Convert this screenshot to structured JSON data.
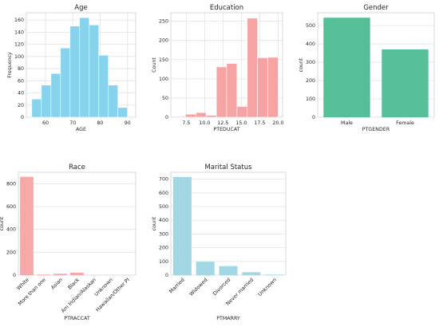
{
  "chart_data": [
    {
      "type": "bar",
      "title": "Age",
      "xlabel": "AGE",
      "ylabel": "Frequency",
      "xlim": [
        53,
        93
      ],
      "ylim": [
        0,
        172
      ],
      "xticks": [
        "60",
        "70",
        "80",
        "90"
      ],
      "xtick_values": [
        60,
        70,
        80,
        90
      ],
      "yticks": [
        "0",
        "20",
        "40",
        "60",
        "80",
        "100",
        "120",
        "140",
        "160"
      ],
      "ytick_values": [
        0,
        20,
        40,
        60,
        80,
        100,
        120,
        140,
        160
      ],
      "color": "#87d3ee",
      "bins": [
        {
          "x0": 55,
          "x1": 58.5,
          "value": 30
        },
        {
          "x0": 58.5,
          "x1": 62,
          "value": 53
        },
        {
          "x0": 62,
          "x1": 65.5,
          "value": 72
        },
        {
          "x0": 65.5,
          "x1": 69,
          "value": 114
        },
        {
          "x0": 69,
          "x1": 72.5,
          "value": 150
        },
        {
          "x0": 72.5,
          "x1": 76,
          "value": 164
        },
        {
          "x0": 76,
          "x1": 79.5,
          "value": 152
        },
        {
          "x0": 79.5,
          "x1": 83,
          "value": 102
        },
        {
          "x0": 83,
          "x1": 86.5,
          "value": 53
        },
        {
          "x0": 86.5,
          "x1": 90,
          "value": 16
        }
      ],
      "grid": true
    },
    {
      "type": "bar",
      "title": "Education",
      "xlabel": "PTEDUCAT",
      "ylabel": "Count",
      "xlim": [
        5.4,
        20.6
      ],
      "ylim": [
        0,
        272
      ],
      "xticks": [
        "7.5",
        "10.0",
        "12.5",
        "15.0",
        "17.5",
        "20.0"
      ],
      "xtick_values": [
        7.5,
        10,
        12.5,
        15,
        17.5,
        20
      ],
      "yticks": [
        "0",
        "50",
        "100",
        "150",
        "200",
        "250"
      ],
      "ytick_values": [
        0,
        50,
        100,
        150,
        200,
        250
      ],
      "color": "#f7a3a3",
      "bins": [
        {
          "x0": 6,
          "x1": 7.4,
          "value": 2
        },
        {
          "x0": 7.4,
          "x1": 8.8,
          "value": 8
        },
        {
          "x0": 8.8,
          "x1": 10.2,
          "value": 12
        },
        {
          "x0": 10.2,
          "x1": 11.6,
          "value": 5
        },
        {
          "x0": 11.6,
          "x1": 13,
          "value": 131
        },
        {
          "x0": 13,
          "x1": 14.4,
          "value": 140
        },
        {
          "x0": 14.4,
          "x1": 15.8,
          "value": 28
        },
        {
          "x0": 15.8,
          "x1": 17.2,
          "value": 258
        },
        {
          "x0": 17.2,
          "x1": 18.6,
          "value": 155
        },
        {
          "x0": 18.6,
          "x1": 20,
          "value": 156
        }
      ],
      "grid": true
    },
    {
      "type": "bar",
      "title": "Gender",
      "xlabel": "PTGENDER",
      "ylabel": "count",
      "ylim": [
        0,
        570
      ],
      "categories": [
        "Male",
        "Female"
      ],
      "values": [
        543,
        370
      ],
      "yticks": [
        "0",
        "100",
        "200",
        "300",
        "400",
        "500"
      ],
      "ytick_values": [
        0,
        100,
        200,
        300,
        400,
        500
      ],
      "color": "#55c098",
      "grid": true
    },
    {
      "type": "bar",
      "title": "Race",
      "xlabel": "PTRACCAT",
      "ylabel": "count",
      "ylim": [
        0,
        900
      ],
      "categories": [
        "White",
        "More than one",
        "Asian",
        "Black",
        "Am Indian/Alaskan",
        "Unknown",
        "Hawaiian/Other PI"
      ],
      "values": [
        860,
        5,
        12,
        22,
        1,
        1,
        1
      ],
      "yticks": [
        "0",
        "200",
        "400",
        "600",
        "800"
      ],
      "ytick_values": [
        0,
        200,
        400,
        600,
        800
      ],
      "color": "#f7a8a8",
      "grid": true
    },
    {
      "type": "bar",
      "title": "Marital Status",
      "xlabel": "PTMARRY",
      "ylabel": "count",
      "ylim": [
        0,
        750
      ],
      "categories": [
        "Married",
        "Widowed",
        "Divorced",
        "Never married",
        "Unknown"
      ],
      "values": [
        716,
        98,
        66,
        22,
        4
      ],
      "yticks": [
        "0",
        "100",
        "200",
        "300",
        "400",
        "500",
        "600",
        "700"
      ],
      "ytick_values": [
        0,
        100,
        200,
        300,
        400,
        500,
        600,
        700
      ],
      "color": "#a4d7e4",
      "grid": true
    }
  ]
}
